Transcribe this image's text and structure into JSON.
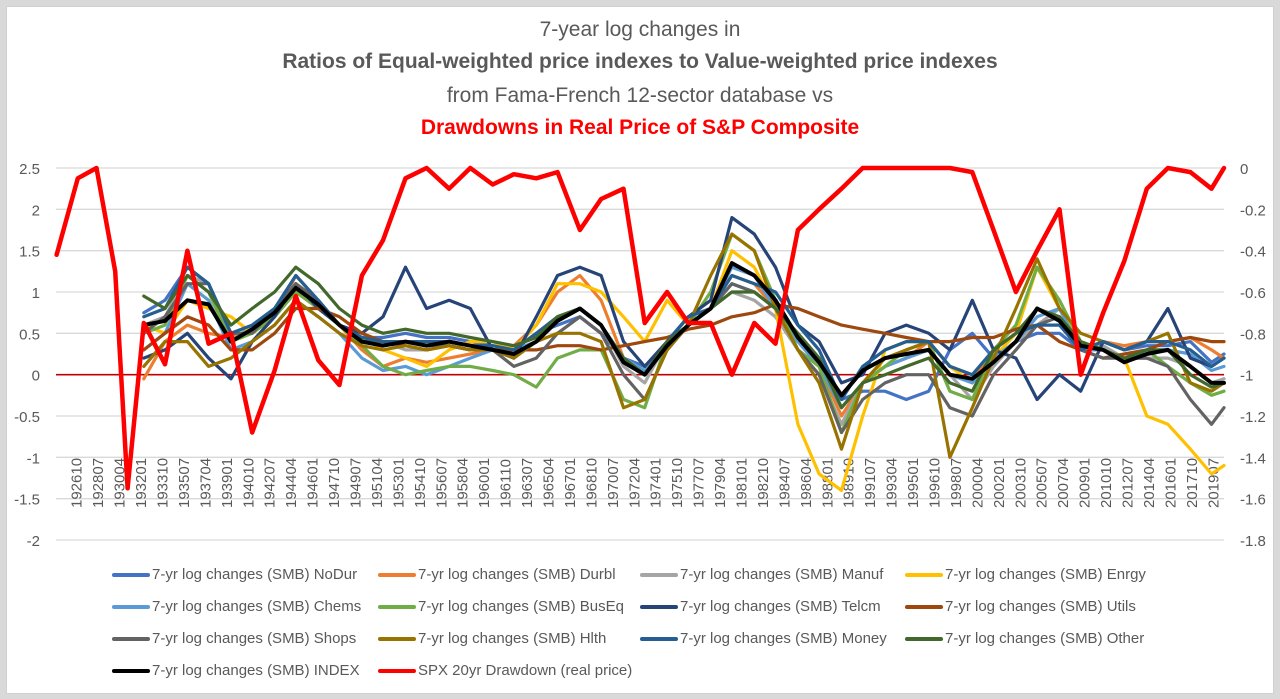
{
  "chart_data": {
    "type": "line",
    "title_lines": [
      "7-year log changes in",
      "Ratios of Equal-weighted price indexes to Value-weighted price indexes",
      "from Fama-French 12-sector database vs",
      "Drawdowns in Real Price of S&P Composite"
    ],
    "title_colors": [
      "#595959",
      "#595959",
      "#595959",
      "#ff0000"
    ],
    "xlabel": "",
    "ylabel_left": "",
    "ylabel_right": "",
    "y_left": {
      "min": -2,
      "max": 2.5,
      "step": 0.5,
      "ticks": [
        "2.5",
        "2",
        "1.5",
        "1",
        "0.5",
        "0",
        "-0.5",
        "-1",
        "-1.5",
        "-2"
      ]
    },
    "y_right": {
      "min": -1.8,
      "max": 0,
      "step": 0.2,
      "ticks": [
        "0",
        "-0.2",
        "-0.4",
        "-0.6",
        "-0.8",
        "-1",
        "-1.2",
        "-1.4",
        "-1.6",
        "-1.8"
      ]
    },
    "x_range": [
      1926.75,
      2020.5
    ],
    "x_tick_labels": [
      "192610",
      "192807",
      "193004",
      "193201",
      "193310",
      "193507",
      "193704",
      "193901",
      "194010",
      "194207",
      "194404",
      "194601",
      "194710",
      "194907",
      "195104",
      "195301",
      "195410",
      "195607",
      "195804",
      "196001",
      "196110",
      "196307",
      "196504",
      "196701",
      "196810",
      "197007",
      "197204",
      "197401",
      "197510",
      "197707",
      "197904",
      "198101",
      "198210",
      "198407",
      "198604",
      "198801",
      "198910",
      "199107",
      "199304",
      "199501",
      "199610",
      "199807",
      "200004",
      "200201",
      "200310",
      "200507",
      "200704",
      "200901",
      "201010",
      "201207",
      "201404",
      "201601",
      "201710",
      "201907"
    ],
    "zero_line_color": "#c00000",
    "grid": true,
    "legend_position": "bottom",
    "x": [
      1926.8,
      1928.5,
      1930,
      1931.5,
      1932.5,
      1933.8,
      1935.5,
      1937.3,
      1939,
      1940.8,
      1942.5,
      1944.3,
      1946,
      1947.8,
      1949.5,
      1951.3,
      1953,
      1954.8,
      1956.5,
      1958.3,
      1960,
      1961.8,
      1963.5,
      1965.3,
      1967,
      1968.8,
      1970.5,
      1972.3,
      1974,
      1975.8,
      1977.5,
      1979.3,
      1981,
      1982.8,
      1984.5,
      1986.3,
      1988,
      1989.8,
      1991.5,
      1993.3,
      1995,
      1996.8,
      1998.5,
      2000.3,
      2002,
      2003.8,
      2005.5,
      2007.3,
      2009,
      2010.8,
      2012.5,
      2014.3,
      2016,
      2017.8,
      2019.5,
      2020.5
    ],
    "series": [
      {
        "name": "7-yr log changes (SMB) NoDur",
        "color": "#4472c4",
        "axis": "left",
        "values": [
          null,
          null,
          null,
          null,
          null,
          0.75,
          0.9,
          1.3,
          1.1,
          0.4,
          0.6,
          0.8,
          1.1,
          0.85,
          0.6,
          0.45,
          0.45,
          0.5,
          0.45,
          0.45,
          0.4,
          0.35,
          0.3,
          0.5,
          0.6,
          0.7,
          0.5,
          0.2,
          0.1,
          0.3,
          0.6,
          0.8,
          1.1,
          1.0,
          0.8,
          0.4,
          0.2,
          -0.3,
          -0.2,
          -0.2,
          -0.3,
          -0.2,
          0.3,
          0.5,
          0.2,
          0.4,
          0.5,
          0.5,
          0.3,
          0.4,
          0.3,
          0.35,
          0.35,
          0.4,
          0.15,
          0.25
        ]
      },
      {
        "name": "7-yr log changes (SMB) Durbl",
        "color": "#ed7d31",
        "axis": "left",
        "values": [
          null,
          null,
          null,
          null,
          null,
          -0.05,
          0.4,
          0.6,
          0.5,
          0.45,
          0.55,
          0.7,
          1.2,
          0.9,
          0.6,
          0.3,
          0.1,
          0.2,
          0.15,
          0.2,
          0.25,
          0.3,
          0.35,
          0.6,
          1.0,
          1.2,
          0.9,
          0.2,
          0.0,
          0.4,
          0.7,
          0.8,
          1.2,
          1.1,
          0.8,
          0.3,
          0.1,
          -0.5,
          -0.1,
          0.1,
          0.2,
          0.4,
          0.1,
          0.0,
          0.2,
          0.4,
          0.6,
          0.8,
          0.3,
          0.4,
          0.35,
          0.4,
          0.4,
          0.45,
          0.3,
          0.2
        ]
      },
      {
        "name": "7-yr log changes (SMB) Manuf",
        "color": "#a5a5a5",
        "axis": "left",
        "values": [
          null,
          null,
          null,
          null,
          null,
          0.6,
          0.7,
          1.2,
          1.1,
          0.4,
          0.6,
          0.8,
          1.1,
          0.9,
          0.6,
          0.45,
          0.4,
          0.3,
          0.3,
          0.35,
          0.3,
          0.3,
          0.2,
          0.4,
          0.7,
          0.8,
          0.6,
          0.1,
          -0.1,
          0.4,
          0.7,
          0.8,
          1.0,
          0.9,
          0.7,
          0.3,
          0.0,
          -0.6,
          -0.1,
          0.1,
          0.2,
          0.3,
          0.0,
          -0.3,
          0.1,
          0.4,
          0.6,
          0.8,
          0.3,
          0.35,
          0.2,
          0.2,
          0.2,
          0.1,
          -0.1,
          -0.05
        ]
      },
      {
        "name": "7-yr log changes (SMB) Enrgy",
        "color": "#ffc000",
        "axis": "left",
        "values": [
          null,
          null,
          null,
          null,
          null,
          0.6,
          0.5,
          0.9,
          0.8,
          0.7,
          0.5,
          0.7,
          1.1,
          0.9,
          0.6,
          0.45,
          0.3,
          0.2,
          0.1,
          0.3,
          0.4,
          0.4,
          0.3,
          0.6,
          1.1,
          1.1,
          1.0,
          0.7,
          0.4,
          0.9,
          0.6,
          0.8,
          1.5,
          1.3,
          0.8,
          -0.6,
          -1.2,
          -1.4,
          -0.5,
          0.3,
          0.4,
          0.4,
          0.1,
          -0.1,
          0.2,
          0.5,
          1.3,
          0.8,
          0.4,
          0.3,
          0.2,
          -0.5,
          -0.6,
          -0.9,
          -1.2,
          -1.1
        ]
      },
      {
        "name": "7-yr log changes (SMB) Chems",
        "color": "#5b9bd5",
        "axis": "left",
        "values": [
          null,
          null,
          null,
          null,
          null,
          0.3,
          0.5,
          1.1,
          0.9,
          0.3,
          0.4,
          0.6,
          0.9,
          0.7,
          0.5,
          0.2,
          0.05,
          0.1,
          0.0,
          0.1,
          0.2,
          0.3,
          0.3,
          0.4,
          0.7,
          0.8,
          0.6,
          0.2,
          0.05,
          0.4,
          0.6,
          0.8,
          1.3,
          1.2,
          0.8,
          0.4,
          0.1,
          -0.4,
          -0.1,
          0.1,
          0.2,
          0.3,
          0.0,
          -0.1,
          0.2,
          0.4,
          0.7,
          0.8,
          0.3,
          0.3,
          0.2,
          0.25,
          0.3,
          0.25,
          0.05,
          0.1
        ]
      },
      {
        "name": "7-yr log changes (SMB) BusEq",
        "color": "#70ad47",
        "axis": "left",
        "values": [
          null,
          null,
          null,
          null,
          null,
          0.5,
          0.6,
          1.2,
          1.0,
          0.4,
          0.5,
          0.7,
          1.0,
          0.8,
          0.6,
          0.35,
          0.1,
          0.0,
          0.05,
          0.1,
          0.1,
          0.05,
          0.0,
          -0.15,
          0.2,
          0.3,
          0.3,
          -0.3,
          -0.4,
          0.4,
          0.6,
          1.0,
          1.7,
          1.5,
          0.9,
          0.3,
          0.1,
          -0.7,
          -0.1,
          0.1,
          0.3,
          0.4,
          -0.2,
          -0.3,
          0.3,
          0.6,
          1.3,
          0.9,
          0.4,
          0.3,
          0.2,
          0.3,
          0.1,
          -0.1,
          -0.25,
          -0.2
        ]
      },
      {
        "name": "7-yr log changes (SMB) Telcm",
        "color": "#264478",
        "axis": "left",
        "values": [
          null,
          null,
          null,
          null,
          null,
          0.2,
          0.3,
          0.5,
          0.2,
          -0.05,
          0.4,
          0.7,
          1.1,
          0.8,
          0.6,
          0.5,
          0.7,
          1.3,
          0.8,
          0.9,
          0.8,
          0.3,
          0.2,
          0.7,
          1.2,
          1.3,
          1.2,
          0.4,
          0.1,
          0.4,
          0.7,
          0.9,
          1.9,
          1.7,
          1.3,
          0.6,
          0.4,
          -0.1,
          0.0,
          0.5,
          0.6,
          0.5,
          0.3,
          0.9,
          0.3,
          0.2,
          -0.3,
          0.0,
          -0.2,
          0.4,
          0.3,
          0.4,
          0.8,
          0.2,
          0.1,
          0.2
        ]
      },
      {
        "name": "7-yr log changes (SMB) Utils",
        "color": "#9e480e",
        "axis": "left",
        "values": [
          null,
          null,
          null,
          null,
          null,
          0.3,
          0.5,
          0.7,
          0.6,
          0.3,
          0.3,
          0.5,
          0.8,
          0.8,
          0.7,
          0.5,
          0.4,
          0.35,
          0.3,
          0.35,
          0.3,
          0.3,
          0.3,
          0.3,
          0.35,
          0.35,
          0.3,
          0.35,
          0.4,
          0.45,
          0.55,
          0.6,
          0.7,
          0.75,
          0.85,
          0.8,
          0.7,
          0.6,
          0.55,
          0.5,
          0.45,
          0.4,
          0.4,
          0.45,
          0.45,
          0.55,
          0.6,
          0.4,
          0.3,
          0.2,
          0.25,
          0.3,
          0.4,
          0.45,
          0.4,
          0.4
        ]
      },
      {
        "name": "7-yr log changes (SMB) Shops",
        "color": "#636363",
        "axis": "left",
        "values": [
          null,
          null,
          null,
          null,
          null,
          0.5,
          0.7,
          1.1,
          1.1,
          0.5,
          0.5,
          0.8,
          1.1,
          0.9,
          0.6,
          0.4,
          0.4,
          0.4,
          0.35,
          0.35,
          0.3,
          0.3,
          0.1,
          0.2,
          0.5,
          0.7,
          0.5,
          0.0,
          -0.3,
          0.3,
          0.6,
          0.8,
          1.1,
          1.0,
          0.8,
          0.3,
          0.0,
          -0.7,
          -0.3,
          -0.1,
          0.0,
          0.0,
          -0.4,
          -0.5,
          0.0,
          0.3,
          0.6,
          0.7,
          0.3,
          0.2,
          0.2,
          0.2,
          0.1,
          -0.3,
          -0.6,
          -0.4
        ]
      },
      {
        "name": "7-yr log changes (SMB) Hlth",
        "color": "#997300",
        "axis": "left",
        "values": [
          null,
          null,
          null,
          null,
          null,
          0.1,
          0.4,
          0.4,
          0.1,
          0.2,
          0.4,
          0.6,
          0.9,
          0.7,
          0.5,
          0.35,
          0.3,
          0.35,
          0.3,
          0.35,
          0.3,
          0.3,
          0.2,
          0.4,
          0.5,
          0.5,
          0.4,
          -0.4,
          -0.3,
          0.3,
          0.6,
          1.2,
          1.7,
          1.5,
          0.8,
          0.3,
          -0.1,
          -0.9,
          -0.1,
          0.2,
          0.3,
          0.4,
          -1.0,
          -0.4,
          0.2,
          0.8,
          1.4,
          0.8,
          0.5,
          0.4,
          0.3,
          0.4,
          0.5,
          -0.1,
          -0.2,
          -0.1
        ]
      },
      {
        "name": "7-yr log changes (SMB) Money",
        "color": "#255e91",
        "axis": "left",
        "values": [
          null,
          null,
          null,
          null,
          null,
          0.7,
          0.8,
          1.3,
          1.1,
          0.5,
          0.6,
          0.8,
          1.2,
          0.9,
          0.6,
          0.45,
          0.4,
          0.4,
          0.4,
          0.4,
          0.35,
          0.35,
          0.3,
          0.5,
          0.7,
          0.8,
          0.6,
          0.2,
          0.0,
          0.4,
          0.7,
          0.8,
          1.2,
          1.1,
          1.0,
          0.6,
          0.3,
          -0.3,
          0.1,
          0.3,
          0.4,
          0.4,
          0.1,
          0.0,
          0.3,
          0.5,
          0.6,
          0.6,
          0.3,
          0.4,
          0.3,
          0.4,
          0.4,
          0.3,
          0.1,
          0.2
        ]
      },
      {
        "name": "7-yr log changes (SMB) Other",
        "color": "#43682b",
        "axis": "left",
        "values": [
          null,
          null,
          null,
          null,
          null,
          0.95,
          0.8,
          1.2,
          1.0,
          0.6,
          0.8,
          1.0,
          1.3,
          1.1,
          0.8,
          0.6,
          0.5,
          0.55,
          0.5,
          0.5,
          0.45,
          0.4,
          0.35,
          0.45,
          0.7,
          0.8,
          0.6,
          0.2,
          0.0,
          0.4,
          0.6,
          0.8,
          1.0,
          1.0,
          0.8,
          0.5,
          0.2,
          -0.4,
          -0.1,
          0.0,
          0.1,
          0.2,
          -0.1,
          -0.2,
          0.3,
          0.5,
          0.8,
          0.7,
          0.4,
          0.3,
          0.2,
          0.3,
          0.3,
          0.0,
          -0.15,
          -0.1
        ]
      },
      {
        "name": "7-yr log changes (SMB) INDEX",
        "color": "#000000",
        "axis": "left",
        "values": [
          null,
          null,
          null,
          null,
          null,
          0.6,
          0.65,
          0.9,
          0.85,
          0.4,
          0.55,
          0.75,
          1.05,
          0.85,
          0.6,
          0.4,
          0.35,
          0.4,
          0.35,
          0.4,
          0.35,
          0.3,
          0.25,
          0.4,
          0.65,
          0.8,
          0.6,
          0.15,
          0.0,
          0.35,
          0.6,
          0.8,
          1.35,
          1.2,
          0.9,
          0.45,
          0.15,
          -0.25,
          0.05,
          0.2,
          0.25,
          0.3,
          0.0,
          -0.05,
          0.15,
          0.4,
          0.8,
          0.65,
          0.35,
          0.3,
          0.15,
          0.25,
          0.3,
          0.1,
          -0.1,
          -0.1
        ]
      },
      {
        "name": "SPX 20yr Drawdown (real price)",
        "color": "#ff0000",
        "axis": "right",
        "values": [
          -0.42,
          -0.05,
          0.0,
          -0.5,
          -1.55,
          -0.75,
          -0.95,
          -0.4,
          -0.85,
          -0.8,
          -1.28,
          -0.98,
          -0.62,
          -0.93,
          -1.05,
          -0.52,
          -0.35,
          -0.05,
          0.0,
          -0.1,
          0.0,
          -0.08,
          -0.03,
          -0.05,
          -0.02,
          -0.3,
          -0.15,
          -0.1,
          -0.75,
          -0.6,
          -0.75,
          -0.75,
          -1.0,
          -0.75,
          -0.85,
          -0.3,
          -0.2,
          -0.1,
          0.0,
          0.0,
          0.0,
          0.0,
          0.0,
          -0.02,
          -0.3,
          -0.6,
          -0.4,
          -0.2,
          -1.0,
          -0.7,
          -0.45,
          -0.1,
          0.0,
          -0.02,
          -0.1,
          0.0
        ]
      }
    ]
  }
}
